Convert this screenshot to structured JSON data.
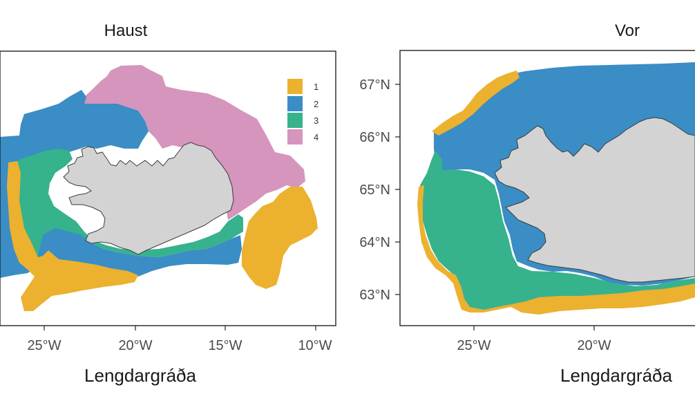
{
  "colors": {
    "1": "#ECB12F",
    "2": "#3A8DC5",
    "3": "#36B28D",
    "4": "#D595BC",
    "land": "#D3D3D3"
  },
  "legend": [
    {
      "label": "1",
      "color": "#ECB12F"
    },
    {
      "label": "2",
      "color": "#3A8DC5"
    },
    {
      "label": "3",
      "color": "#36B28D"
    },
    {
      "label": "4",
      "color": "#D595BC"
    }
  ],
  "panels": [
    {
      "title": "Haust",
      "xlabel": "Lengdargráða",
      "x_ticks": [
        "25°W",
        "20°W",
        "15°W",
        "10°W"
      ],
      "y_ticks": []
    },
    {
      "title": "Vor",
      "xlabel": "Lengdargráða",
      "x_ticks": [
        "25°W",
        "20°W"
      ],
      "y_ticks": [
        "67°N",
        "66°N",
        "65°N",
        "64°N",
        "63°N"
      ]
    }
  ]
}
